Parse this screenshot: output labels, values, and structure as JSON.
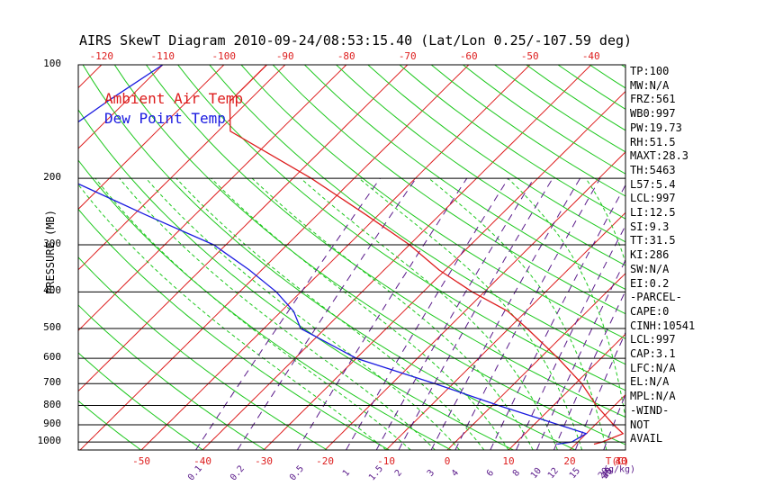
{
  "title": "AIRS SkewT Diagram 2010-09-24/08:53:15.40 (Lat/Lon 0.25/-107.59 deg)",
  "chart_data": {
    "type": "line",
    "ylabel": "PRESSURE (MB)",
    "x_unit_label": "T(C)",
    "mixing_ratio_unit_label": "(g/kg)",
    "pressure_ticks": [
      100,
      200,
      300,
      400,
      500,
      600,
      700,
      800,
      900,
      1000
    ],
    "pressure_range": [
      100,
      1050
    ],
    "temp_ticks_top": [
      -120,
      -110,
      -100,
      -90,
      -80,
      -70,
      -60,
      -50,
      -40
    ],
    "temp_ticks_bottom": [
      -50,
      -40,
      -30,
      -20,
      -10,
      0,
      10,
      20,
      30,
      40
    ],
    "mixing_ratio_labels": [
      "0.1",
      "0.2",
      "0.5",
      "1",
      "1.5",
      "2",
      "3",
      "4",
      "6",
      "8",
      "10",
      "12",
      "15",
      "20",
      "25",
      "30",
      "40"
    ],
    "legend": [
      "Ambient Air Temp",
      "Dew Point Temp"
    ],
    "series": [
      {
        "name": "Ambient Air Temp",
        "color": "#dd1c1c",
        "points": [
          {
            "p": 100,
            "t": -93
          },
          {
            "p": 125,
            "t": -93
          },
          {
            "p": 150,
            "t": -88
          },
          {
            "p": 200,
            "t": -67
          },
          {
            "p": 250,
            "t": -52
          },
          {
            "p": 300,
            "t": -40
          },
          {
            "p": 350,
            "t": -31
          },
          {
            "p": 400,
            "t": -22
          },
          {
            "p": 450,
            "t": -13
          },
          {
            "p": 500,
            "t": -7
          },
          {
            "p": 600,
            "t": 3
          },
          {
            "p": 700,
            "t": 11
          },
          {
            "p": 800,
            "t": 17
          },
          {
            "p": 900,
            "t": 23
          },
          {
            "p": 950,
            "t": 26
          },
          {
            "p": 1000,
            "t": 24
          },
          {
            "p": 1013,
            "t": 23
          }
        ]
      },
      {
        "name": "Dew Point Temp",
        "color": "#1a1ae0",
        "points": [
          {
            "p": 100,
            "t": -110
          },
          {
            "p": 125,
            "t": -113
          },
          {
            "p": 150,
            "t": -115
          },
          {
            "p": 200,
            "t": -107
          },
          {
            "p": 250,
            "t": -88
          },
          {
            "p": 300,
            "t": -72
          },
          {
            "p": 350,
            "t": -62
          },
          {
            "p": 400,
            "t": -54
          },
          {
            "p": 450,
            "t": -48
          },
          {
            "p": 500,
            "t": -44
          },
          {
            "p": 600,
            "t": -30
          },
          {
            "p": 700,
            "t": -13
          },
          {
            "p": 800,
            "t": 1
          },
          {
            "p": 900,
            "t": 14
          },
          {
            "p": 950,
            "t": 20
          },
          {
            "p": 1000,
            "t": 19
          },
          {
            "p": 1013,
            "t": 17
          }
        ]
      }
    ],
    "colors": {
      "isotherm": "#dd1c1c",
      "dry_adiabat": "#1ec81e",
      "moist_adiabat": "#1ec81e",
      "mixing_ratio": "#5a1a8a",
      "isobar": "#000000"
    }
  },
  "stats": [
    "TP:100",
    "MW:N/A",
    "FRZ:561",
    "WB0:997",
    "PW:19.73",
    "RH:51.5",
    "MAXT:28.3",
    "TH:5463",
    "L57:5.4",
    "LCL:997",
    "LI:12.5",
    "SI:9.3",
    "TT:31.5",
    "KI:286",
    "SW:N/A",
    "EI:0.2",
    "-PARCEL-",
    "CAPE:0",
    "CINH:10541",
    "LCL:997",
    "CAP:3.1",
    "LFC:N/A",
    "EL:N/A",
    "MPL:N/A",
    "-WIND-",
    "NOT",
    "AVAIL"
  ]
}
